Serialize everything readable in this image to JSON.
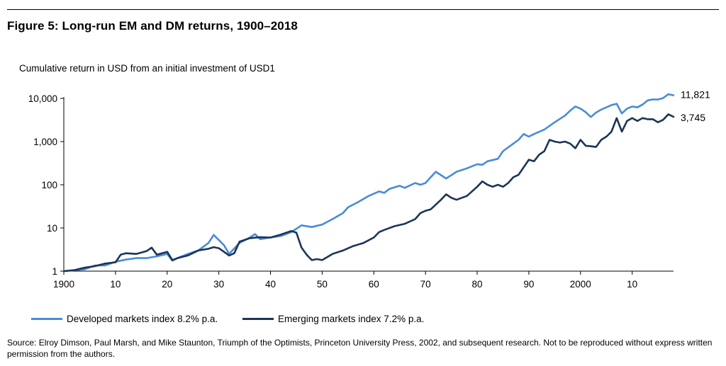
{
  "figure_title": "Figure 5: Long-run EM and DM returns, 1900–2018",
  "source_note": "Source: Elroy Dimson, Paul Marsh, and Mike Staunton, Triumph of the Optimists, Princeton University Press, 2002, and subsequent research. Not to be reproduced without express written permission from the authors.",
  "chart_data": {
    "type": "line",
    "subtitle": "Cumulative return in USD from an initial investment of USD1",
    "y_scale": "log",
    "ylim": [
      1,
      10000
    ],
    "xlim": [
      1900,
      2018
    ],
    "y_ticks": [
      {
        "value": 1,
        "label": "1"
      },
      {
        "value": 10,
        "label": "10"
      },
      {
        "value": 100,
        "label": "100"
      },
      {
        "value": 1000,
        "label": "1,000"
      },
      {
        "value": 10000,
        "label": "10,000"
      }
    ],
    "x_ticks": [
      {
        "value": 1900,
        "label": "1900"
      },
      {
        "value": 1910,
        "label": "10"
      },
      {
        "value": 1920,
        "label": "20"
      },
      {
        "value": 1930,
        "label": "30"
      },
      {
        "value": 1940,
        "label": "40"
      },
      {
        "value": 1950,
        "label": "50"
      },
      {
        "value": 1960,
        "label": "60"
      },
      {
        "value": 1970,
        "label": "70"
      },
      {
        "value": 1980,
        "label": "80"
      },
      {
        "value": 1990,
        "label": "90"
      },
      {
        "value": 2000,
        "label": "2000"
      },
      {
        "value": 2010,
        "label": "10"
      }
    ],
    "grid": false,
    "legend_position": "bottom",
    "series": [
      {
        "name": "Developed markets index 8.2% p.a.",
        "color": "#4a8bd6",
        "end_label": "11,821",
        "points": [
          [
            1900,
            1
          ],
          [
            1902,
            1.05
          ],
          [
            1904,
            1.1
          ],
          [
            1906,
            1.35
          ],
          [
            1908,
            1.35
          ],
          [
            1910,
            1.65
          ],
          [
            1912,
            1.85
          ],
          [
            1914,
            2.0
          ],
          [
            1916,
            2.0
          ],
          [
            1918,
            2.2
          ],
          [
            1920,
            2.5
          ],
          [
            1921,
            1.75
          ],
          [
            1922,
            2.0
          ],
          [
            1924,
            2.5
          ],
          [
            1926,
            3.0
          ],
          [
            1928,
            4.5
          ],
          [
            1929,
            6.9
          ],
          [
            1931,
            4.0
          ],
          [
            1932,
            2.5
          ],
          [
            1934,
            4.5
          ],
          [
            1936,
            6.0
          ],
          [
            1937,
            7.2
          ],
          [
            1938,
            5.5
          ],
          [
            1940,
            6.0
          ],
          [
            1942,
            6.5
          ],
          [
            1944,
            8.0
          ],
          [
            1946,
            11.5
          ],
          [
            1948,
            10.5
          ],
          [
            1950,
            12.0
          ],
          [
            1952,
            16.0
          ],
          [
            1954,
            22.0
          ],
          [
            1955,
            30.0
          ],
          [
            1957,
            40.0
          ],
          [
            1959,
            55.0
          ],
          [
            1961,
            70.0
          ],
          [
            1962,
            65.0
          ],
          [
            1963,
            80.0
          ],
          [
            1965,
            95.0
          ],
          [
            1966,
            85.0
          ],
          [
            1968,
            110.0
          ],
          [
            1969,
            100.0
          ],
          [
            1970,
            110.0
          ],
          [
            1971,
            150.0
          ],
          [
            1972,
            200.0
          ],
          [
            1974,
            140.0
          ],
          [
            1976,
            200.0
          ],
          [
            1978,
            240.0
          ],
          [
            1980,
            300.0
          ],
          [
            1981,
            290.0
          ],
          [
            1982,
            350.0
          ],
          [
            1984,
            400.0
          ],
          [
            1985,
            600.0
          ],
          [
            1987,
            900.0
          ],
          [
            1988,
            1100.0
          ],
          [
            1989,
            1500.0
          ],
          [
            1990,
            1300.0
          ],
          [
            1991,
            1500.0
          ],
          [
            1993,
            1900.0
          ],
          [
            1995,
            2800.0
          ],
          [
            1997,
            4000.0
          ],
          [
            1998,
            5200.0
          ],
          [
            1999,
            6500.0
          ],
          [
            2000,
            5800.0
          ],
          [
            2001,
            4800.0
          ],
          [
            2002,
            3700.0
          ],
          [
            2003,
            4700.0
          ],
          [
            2004,
            5500.0
          ],
          [
            2006,
            7000.0
          ],
          [
            2007,
            7500.0
          ],
          [
            2008,
            4500.0
          ],
          [
            2009,
            5800.0
          ],
          [
            2010,
            6500.0
          ],
          [
            2011,
            6200.0
          ],
          [
            2012,
            7200.0
          ],
          [
            2013,
            9000.0
          ],
          [
            2014,
            9500.0
          ],
          [
            2015,
            9400.0
          ],
          [
            2016,
            10200.0
          ],
          [
            2017,
            12500.0
          ],
          [
            2018,
            11821.0
          ]
        ]
      },
      {
        "name": "Emerging markets index 7.2% p.a.",
        "color": "#1b3556",
        "end_label": "3,745",
        "points": [
          [
            1900,
            1
          ],
          [
            1902,
            1.05
          ],
          [
            1904,
            1.2
          ],
          [
            1906,
            1.3
          ],
          [
            1908,
            1.5
          ],
          [
            1910,
            1.6
          ],
          [
            1911,
            2.4
          ],
          [
            1912,
            2.6
          ],
          [
            1914,
            2.5
          ],
          [
            1916,
            2.9
          ],
          [
            1917,
            3.5
          ],
          [
            1918,
            2.4
          ],
          [
            1919,
            2.6
          ],
          [
            1920,
            2.8
          ],
          [
            1921,
            1.8
          ],
          [
            1922,
            2.0
          ],
          [
            1924,
            2.3
          ],
          [
            1926,
            3.0
          ],
          [
            1928,
            3.3
          ],
          [
            1929,
            3.6
          ],
          [
            1930,
            3.4
          ],
          [
            1931,
            2.8
          ],
          [
            1932,
            2.3
          ],
          [
            1933,
            2.6
          ],
          [
            1934,
            4.8
          ],
          [
            1936,
            5.8
          ],
          [
            1938,
            6.1
          ],
          [
            1940,
            6.0
          ],
          [
            1942,
            7.0
          ],
          [
            1944,
            8.5
          ],
          [
            1945,
            7.8
          ],
          [
            1946,
            3.5
          ],
          [
            1947,
            2.4
          ],
          [
            1948,
            1.8
          ],
          [
            1949,
            1.9
          ],
          [
            1950,
            1.8
          ],
          [
            1952,
            2.5
          ],
          [
            1954,
            3.0
          ],
          [
            1956,
            3.8
          ],
          [
            1958,
            4.5
          ],
          [
            1960,
            6.0
          ],
          [
            1961,
            8.0
          ],
          [
            1962,
            9.0
          ],
          [
            1964,
            11.0
          ],
          [
            1966,
            12.5
          ],
          [
            1968,
            16.0
          ],
          [
            1969,
            22.0
          ],
          [
            1970,
            25.0
          ],
          [
            1971,
            27.0
          ],
          [
            1973,
            45.0
          ],
          [
            1974,
            60.0
          ],
          [
            1975,
            50.0
          ],
          [
            1976,
            45.0
          ],
          [
            1978,
            55.0
          ],
          [
            1980,
            90.0
          ],
          [
            1981,
            120.0
          ],
          [
            1982,
            100.0
          ],
          [
            1983,
            90.0
          ],
          [
            1984,
            100.0
          ],
          [
            1985,
            90.0
          ],
          [
            1986,
            110.0
          ],
          [
            1987,
            150.0
          ],
          [
            1988,
            170.0
          ],
          [
            1990,
            380.0
          ],
          [
            1991,
            350.0
          ],
          [
            1992,
            500.0
          ],
          [
            1993,
            600.0
          ],
          [
            1994,
            1100.0
          ],
          [
            1995,
            1000.0
          ],
          [
            1996,
            950.0
          ],
          [
            1997,
            1000.0
          ],
          [
            1998,
            900.0
          ],
          [
            1999,
            700.0
          ],
          [
            2000,
            1100.0
          ],
          [
            2001,
            800.0
          ],
          [
            2002,
            780.0
          ],
          [
            2003,
            750.0
          ],
          [
            2004,
            1100.0
          ],
          [
            2005,
            1300.0
          ],
          [
            2006,
            1700.0
          ],
          [
            2007,
            3500.0
          ],
          [
            2008,
            1700.0
          ],
          [
            2009,
            3000.0
          ],
          [
            2010,
            3500.0
          ],
          [
            2011,
            3000.0
          ],
          [
            2012,
            3500.0
          ],
          [
            2013,
            3300.0
          ],
          [
            2014,
            3300.0
          ],
          [
            2015,
            2800.0
          ],
          [
            2016,
            3200.0
          ],
          [
            2017,
            4300.0
          ],
          [
            2018,
            3745.0
          ]
        ]
      }
    ]
  }
}
